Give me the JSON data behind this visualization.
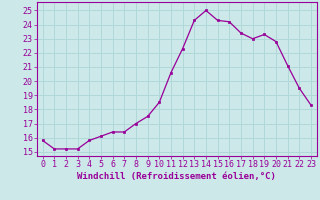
{
  "x": [
    0,
    1,
    2,
    3,
    4,
    5,
    6,
    7,
    8,
    9,
    10,
    11,
    12,
    13,
    14,
    15,
    16,
    17,
    18,
    19,
    20,
    21,
    22,
    23
  ],
  "y": [
    15.8,
    15.2,
    15.2,
    15.2,
    15.8,
    16.1,
    16.4,
    16.4,
    17.0,
    17.5,
    18.5,
    20.6,
    22.3,
    24.3,
    25.0,
    24.3,
    24.2,
    23.4,
    23.0,
    23.3,
    22.8,
    21.1,
    19.5,
    18.3
  ],
  "line_color": "#990099",
  "marker": "s",
  "marker_size": 2.0,
  "linewidth": 0.9,
  "bg_color": "#cce8e8",
  "grid_color": "#b0d8d8",
  "xlabel": "Windchill (Refroidissement éolien,°C)",
  "xlabel_fontsize": 6.5,
  "ylabel_ticks": [
    15,
    16,
    17,
    18,
    19,
    20,
    21,
    22,
    23,
    24,
    25
  ],
  "xlim": [
    -0.5,
    23.5
  ],
  "ylim": [
    14.7,
    25.6
  ],
  "tick_fontsize": 6.0
}
